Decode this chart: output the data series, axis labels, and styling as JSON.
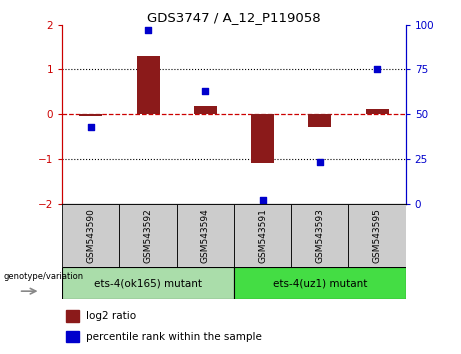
{
  "title": "GDS3747 / A_12_P119058",
  "samples": [
    "GSM543590",
    "GSM543592",
    "GSM543594",
    "GSM543591",
    "GSM543593",
    "GSM543595"
  ],
  "log2_ratio": [
    -0.05,
    1.3,
    0.18,
    -1.1,
    -0.28,
    0.12
  ],
  "percentile_rank": [
    43,
    97,
    63,
    2,
    23,
    75
  ],
  "groups": [
    {
      "label": "ets-4(ok165) mutant",
      "indices": [
        0,
        1,
        2
      ],
      "color": "#90EE90"
    },
    {
      "label": "ets-4(uz1) mutant",
      "indices": [
        3,
        4,
        5
      ],
      "color": "#44DD44"
    }
  ],
  "bar_color": "#8B1A1A",
  "dot_color": "#0000CC",
  "ylim_left": [
    -2.0,
    2.0
  ],
  "ylim_right": [
    0,
    100
  ],
  "yticks_left": [
    -2,
    -1,
    0,
    1,
    2
  ],
  "yticks_right": [
    0,
    25,
    50,
    75,
    100
  ],
  "dotted_lines": [
    -1.0,
    1.0
  ],
  "axis_color_left": "#CC0000",
  "axis_color_right": "#0000CC",
  "legend_items": [
    {
      "label": "log2 ratio",
      "color": "#8B1A1A"
    },
    {
      "label": "percentile rank within the sample",
      "color": "#0000CC"
    }
  ],
  "genotype_label": "genotype/variation",
  "group1_color": "#aaddaa",
  "group2_color": "#44DD44",
  "gray_color": "#cccccc",
  "bar_width": 0.4
}
